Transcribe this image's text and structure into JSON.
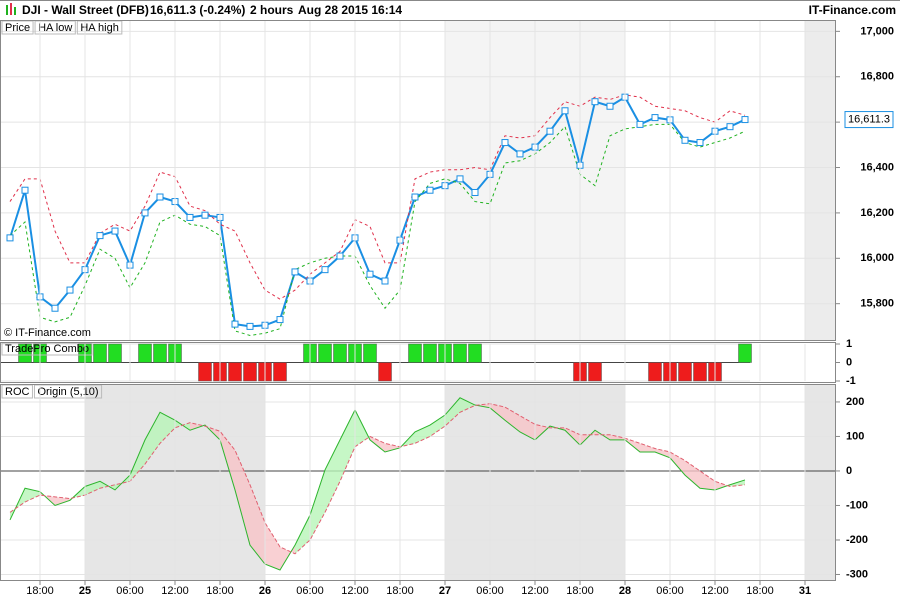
{
  "header": {
    "symbol": "DJI - Wall Street (DFB)",
    "quote": "16,611.3 (-0.24%)",
    "interval": "2 hours",
    "timestamp": "Aug 28 2015 16:14",
    "brand": "IT-Finance.com"
  },
  "chart_data": [
    {
      "type": "line",
      "copyright": "© IT-Finance.com",
      "ylim": [
        15640,
        17050
      ],
      "yticks": [
        {
          "value": 15800,
          "label": "15,800"
        },
        {
          "value": 16000,
          "label": "16,000"
        },
        {
          "value": 16200,
          "label": "16,200"
        },
        {
          "value": 16400,
          "label": "16,400"
        },
        {
          "value": 16600,
          "label": "16,600"
        },
        {
          "value": 16800,
          "label": "16,800"
        },
        {
          "value": 17000,
          "label": "17,000"
        }
      ],
      "grid": true,
      "price_tag": {
        "value": 16611.3,
        "label": "16,611.3"
      },
      "series": [
        {
          "name": "Price",
          "color": "#1a8fe3",
          "markers": true,
          "values": [
            16090,
            16300,
            15830,
            15780,
            15860,
            15950,
            16100,
            16120,
            15970,
            16200,
            16270,
            16250,
            16180,
            16190,
            16180,
            15710,
            15700,
            15705,
            15730,
            15940,
            15900,
            15950,
            16010,
            16090,
            15930,
            15900,
            16080,
            16270,
            16300,
            16320,
            16350,
            16290,
            16370,
            16510,
            16460,
            16490,
            16560,
            16650,
            16410,
            16690,
            16670,
            16710,
            16590,
            16620,
            16610,
            16520,
            16510,
            16560,
            16580,
            16611.3,
            null,
            null,
            null,
            null,
            null,
            null
          ]
        },
        {
          "name": "HA low",
          "color": "#1fb21f",
          "dashed": true,
          "values": [
            16100,
            16160,
            15740,
            15720,
            15740,
            15880,
            16040,
            16000,
            15870,
            15980,
            16160,
            16190,
            16150,
            16140,
            16100,
            15680,
            15660,
            15670,
            15690,
            15950,
            15980,
            16000,
            16010,
            16010,
            15880,
            15780,
            15860,
            16250,
            16330,
            16350,
            16330,
            16250,
            16240,
            16420,
            16430,
            16460,
            16510,
            16580,
            16370,
            16320,
            16540,
            16570,
            16580,
            16590,
            16590,
            16510,
            16490,
            16510,
            16530,
            16560,
            null,
            null,
            null,
            null,
            null,
            null
          ]
        },
        {
          "name": "HA high",
          "color": "#e0304a",
          "dashed": true,
          "values": [
            16250,
            16350,
            16350,
            16120,
            15980,
            15980,
            16110,
            16150,
            16120,
            16230,
            16380,
            16360,
            16230,
            16210,
            16150,
            16120,
            15980,
            15860,
            15820,
            15860,
            15930,
            15980,
            16030,
            16170,
            16140,
            15980,
            15980,
            16350,
            16380,
            16390,
            16390,
            16400,
            16390,
            16540,
            16530,
            16540,
            16620,
            16690,
            16670,
            16710,
            16700,
            16720,
            16710,
            16670,
            16660,
            16650,
            16620,
            16600,
            16650,
            16630,
            null,
            null,
            null,
            null,
            null,
            null
          ]
        }
      ]
    },
    {
      "type": "bar",
      "title": "TradePro Combo",
      "ylim": [
        -1,
        1
      ],
      "yticks": [
        1,
        0,
        -1
      ],
      "up_color": "#22dd22",
      "down_color": "#ee1c1c",
      "values": [
        0,
        1,
        1,
        0,
        0,
        1,
        1,
        1,
        0,
        1,
        1,
        1,
        0,
        -1,
        -1,
        -1,
        -1,
        -1,
        -1,
        0,
        1,
        1,
        1,
        1,
        1,
        -1,
        0,
        1,
        1,
        1,
        1,
        1,
        0,
        0,
        0,
        0,
        0,
        0,
        -1,
        -1,
        0,
        0,
        0,
        -1,
        -1,
        -1,
        -1,
        -1,
        0,
        1,
        null,
        null,
        null,
        null,
        null,
        null
      ]
    },
    {
      "type": "band",
      "ylim": [
        -316,
        252
      ],
      "yticks": [
        200,
        100,
        0,
        -100,
        -200,
        -300
      ],
      "grid": true,
      "up_fill": "#b8f5b8",
      "down_fill": "#f8c4c8",
      "categories": [
        null,
        null,
        "18:00",
        null,
        null,
        "25",
        null,
        null,
        "06:00",
        null,
        null,
        "12:00",
        null,
        null,
        "18:00",
        null,
        null,
        "26",
        null,
        null,
        "06:00",
        null,
        null,
        "12:00",
        null,
        null,
        "18:00",
        null,
        null,
        "27",
        null,
        null,
        "06:00",
        null,
        null,
        "12:00",
        null,
        null,
        "18:00",
        null,
        null,
        "28",
        null,
        null,
        "06:00",
        null,
        null,
        "12:00",
        null,
        null,
        "18:00",
        null,
        null,
        "31",
        null,
        null
      ],
      "series": [
        {
          "name": "ROC",
          "color": "#2db52d",
          "values": [
            -142,
            -50,
            -60,
            -100,
            -85,
            -45,
            -30,
            -55,
            -12,
            90,
            170,
            147,
            118,
            133,
            90,
            -55,
            -215,
            -270,
            -287,
            -215,
            -128,
            3,
            90,
            177,
            90,
            55,
            67,
            113,
            133,
            162,
            212,
            191,
            183,
            147,
            113,
            90,
            130,
            118,
            75,
            118,
            90,
            90,
            55,
            55,
            38,
            -12,
            -50,
            -55,
            -40,
            -26,
            null,
            null,
            null,
            null,
            null,
            null
          ]
        },
        {
          "name": "Origin (5,10)",
          "color": "#e06070",
          "values": [
            -120,
            -90,
            -70,
            -75,
            -80,
            -70,
            -50,
            -40,
            -30,
            20,
            80,
            125,
            140,
            130,
            115,
            60,
            -40,
            -150,
            -220,
            -240,
            -200,
            -120,
            -30,
            70,
            100,
            80,
            70,
            80,
            100,
            130,
            170,
            190,
            195,
            185,
            160,
            135,
            125,
            125,
            105,
            105,
            105,
            95,
            80,
            65,
            55,
            30,
            0,
            -30,
            -45,
            -40,
            null,
            null,
            null,
            null,
            null,
            null
          ]
        }
      ]
    }
  ]
}
